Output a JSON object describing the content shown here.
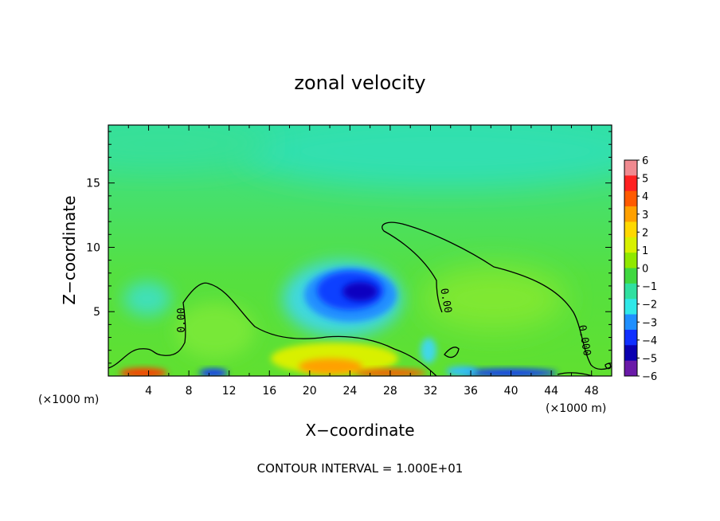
{
  "chart_data": {
    "type": "heatmap",
    "title": "zonal velocity",
    "xlabel": "X−coordinate",
    "ylabel": "Z−coordinate",
    "x_unit_left": "(×1000 m)",
    "x_unit_right": "(×1000 m)",
    "xlim": [
      0,
      50
    ],
    "ylim": [
      0,
      19.5
    ],
    "x_ticks": [
      "4",
      "8",
      "12",
      "16",
      "20",
      "24",
      "28",
      "32",
      "36",
      "40",
      "44",
      "48"
    ],
    "y_ticks": [
      "5",
      "10",
      "15"
    ],
    "colorbar": {
      "labels": [
        "6",
        "5",
        "4",
        "3",
        "2",
        "1",
        "0",
        "−1",
        "−2",
        "−3",
        "−4",
        "−5",
        "−6"
      ],
      "colors": [
        "#f08a90",
        "#ff2020",
        "#ff5a00",
        "#ffa000",
        "#ffd800",
        "#d8f000",
        "#90e800",
        "#40d840",
        "#30e0a0",
        "#30e8e8",
        "#1f8fff",
        "#1030ff",
        "#0a00b0",
        "#6a1aa8"
      ]
    },
    "features": [
      {
        "kind": "min",
        "x": 25,
        "z": 7,
        "value": -5
      },
      {
        "kind": "max",
        "x": 38,
        "z": 6,
        "value": 1
      },
      {
        "kind": "max",
        "x": 22,
        "z": 0.8,
        "value": 3
      },
      {
        "kind": "max",
        "x": 5,
        "z": 0.3,
        "value": 4
      }
    ],
    "contour_labels": [
      "0.00",
      "0.00",
      "0.000"
    ],
    "footer": "CONTOUR INTERVAL = 1.000E+01"
  }
}
